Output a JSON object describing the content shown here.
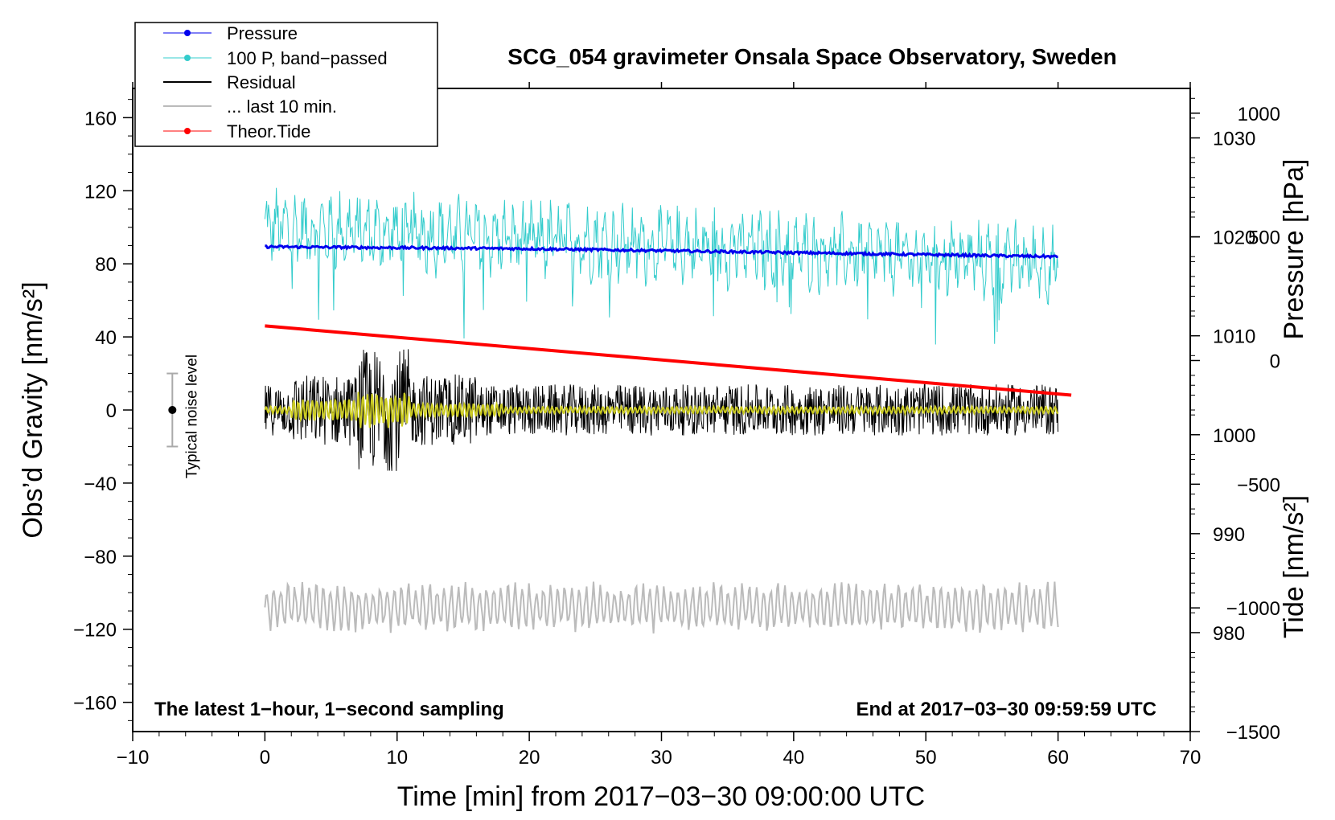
{
  "chart_data": {
    "type": "line",
    "title": "SCG_054 gravimeter Onsala Space Observatory, Sweden",
    "xlabel": "Time [min] from 2017−03−30 09:00:00 UTC",
    "ylabel_left": "Obs’d Gravity [nm/s²]",
    "ylabel_pressure": "Pressure [hPa]",
    "ylabel_tide": "Tide [nm/s²]",
    "xlim": [
      -10,
      70
    ],
    "ylim_left": [
      -176,
      176
    ],
    "pressure_ylim": [
      970,
      1035
    ],
    "tide_ylim": [
      -1500,
      1100
    ],
    "x_ticks": [
      "−10",
      "0",
      "10",
      "20",
      "30",
      "40",
      "50",
      "60",
      "70"
    ],
    "x_tick_values": [
      -10,
      0,
      10,
      20,
      30,
      40,
      50,
      60,
      70
    ],
    "y_ticks_left": [
      "160",
      "120",
      "80",
      "40",
      "0",
      "−40",
      "−80",
      "−120",
      "−160"
    ],
    "y_tick_values_left": [
      160,
      120,
      80,
      40,
      0,
      -40,
      -80,
      -120,
      -160
    ],
    "pressure_ticks": [
      "1030",
      "1020",
      "1010",
      "1000",
      "990",
      "980"
    ],
    "pressure_tick_values": [
      1030,
      1020,
      1010,
      1000,
      990,
      980
    ],
    "tide_ticks": [
      "1000",
      "500",
      "0",
      "−500",
      "−1000",
      "−1500"
    ],
    "tide_tick_values": [
      1000,
      500,
      0,
      -500,
      -1000,
      -1500
    ],
    "series": [
      {
        "name": "Pressure",
        "axis": "pressure",
        "color": "#0000ee",
        "x": [
          0,
          10,
          20,
          30,
          40,
          50,
          60
        ],
        "values": [
          1019.0,
          1018.9,
          1018.8,
          1018.6,
          1018.4,
          1018.2,
          1018.0
        ]
      },
      {
        "name": "100 P, band−passed",
        "axis": "left",
        "color": "#33cccc",
        "x": [
          0,
          60
        ],
        "values": [
          100,
          80
        ],
        "amplitude": 22
      },
      {
        "name": "Residual",
        "axis": "left",
        "color": "#000000",
        "x": [
          0,
          60
        ],
        "values": [
          0,
          0
        ],
        "amplitude": 14
      },
      {
        "name": "... last 10 min.",
        "axis": "left",
        "color": "#bbbbbb",
        "x": [
          0,
          60
        ],
        "values": [
          -108,
          -108
        ],
        "amplitude": 12
      },
      {
        "name": "Theor.Tide",
        "axis": "tide",
        "color": "#ff0000",
        "x": [
          0,
          61
        ],
        "values": [
          140,
          -140
        ]
      }
    ],
    "smoothed_residual_color": "#cccc22",
    "annotations": {
      "noise_label": "Typical noise level",
      "noise_center": 0,
      "noise_halfwidth": 20,
      "noise_x": -7,
      "footer_left": "The latest 1−hour, 1−second sampling",
      "footer_right": "End at 2017−03−30 09:59:59 UTC"
    },
    "legend_position": "top-left"
  }
}
